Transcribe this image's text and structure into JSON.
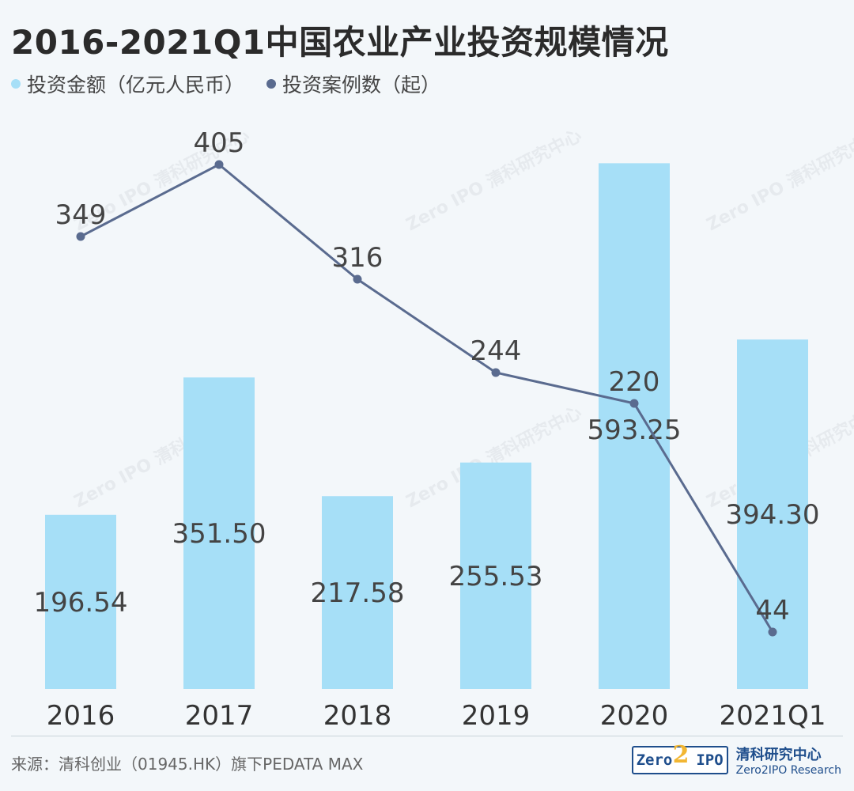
{
  "title": "2016-2021Q1中国农业产业投资规模情况",
  "legend": {
    "amount": "投资金额（亿元人民币）",
    "cases": "投资案例数（起）"
  },
  "colors": {
    "bar": "#a6dff7",
    "line": "#5a6b8f",
    "text": "#444444"
  },
  "chart_data": {
    "type": "bar",
    "categories": [
      "2016",
      "2017",
      "2018",
      "2019",
      "2020",
      "2021Q1"
    ],
    "series": [
      {
        "name": "投资金额（亿元人民币）",
        "type": "bar",
        "values": [
          196.54,
          351.5,
          217.58,
          255.53,
          593.25,
          394.3
        ],
        "labels": [
          "196.54",
          "351.50",
          "217.58",
          "255.53",
          "593.25",
          "394.30"
        ]
      },
      {
        "name": "投资案例数（起）",
        "type": "line",
        "values": [
          349,
          405,
          316,
          244,
          220,
          44
        ],
        "labels": [
          "349",
          "405",
          "316",
          "244",
          "220",
          "44"
        ]
      }
    ],
    "bar_ylim": [
      0,
      600
    ],
    "line_ylim": [
      0,
      480
    ]
  },
  "watermark": {
    "cn": "清科研究中心",
    "en": "Zero2IPO Research",
    "logo": "Zero IPO"
  },
  "footer": {
    "source": "来源：清科创业（01945.HK）旗下PEDATA MAX",
    "brand_logo_left": "Zero",
    "brand_logo_mid": "2",
    "brand_logo_right": "IPO",
    "brand_cn": "清科研究中心",
    "brand_en": "Zero2IPO Research"
  }
}
